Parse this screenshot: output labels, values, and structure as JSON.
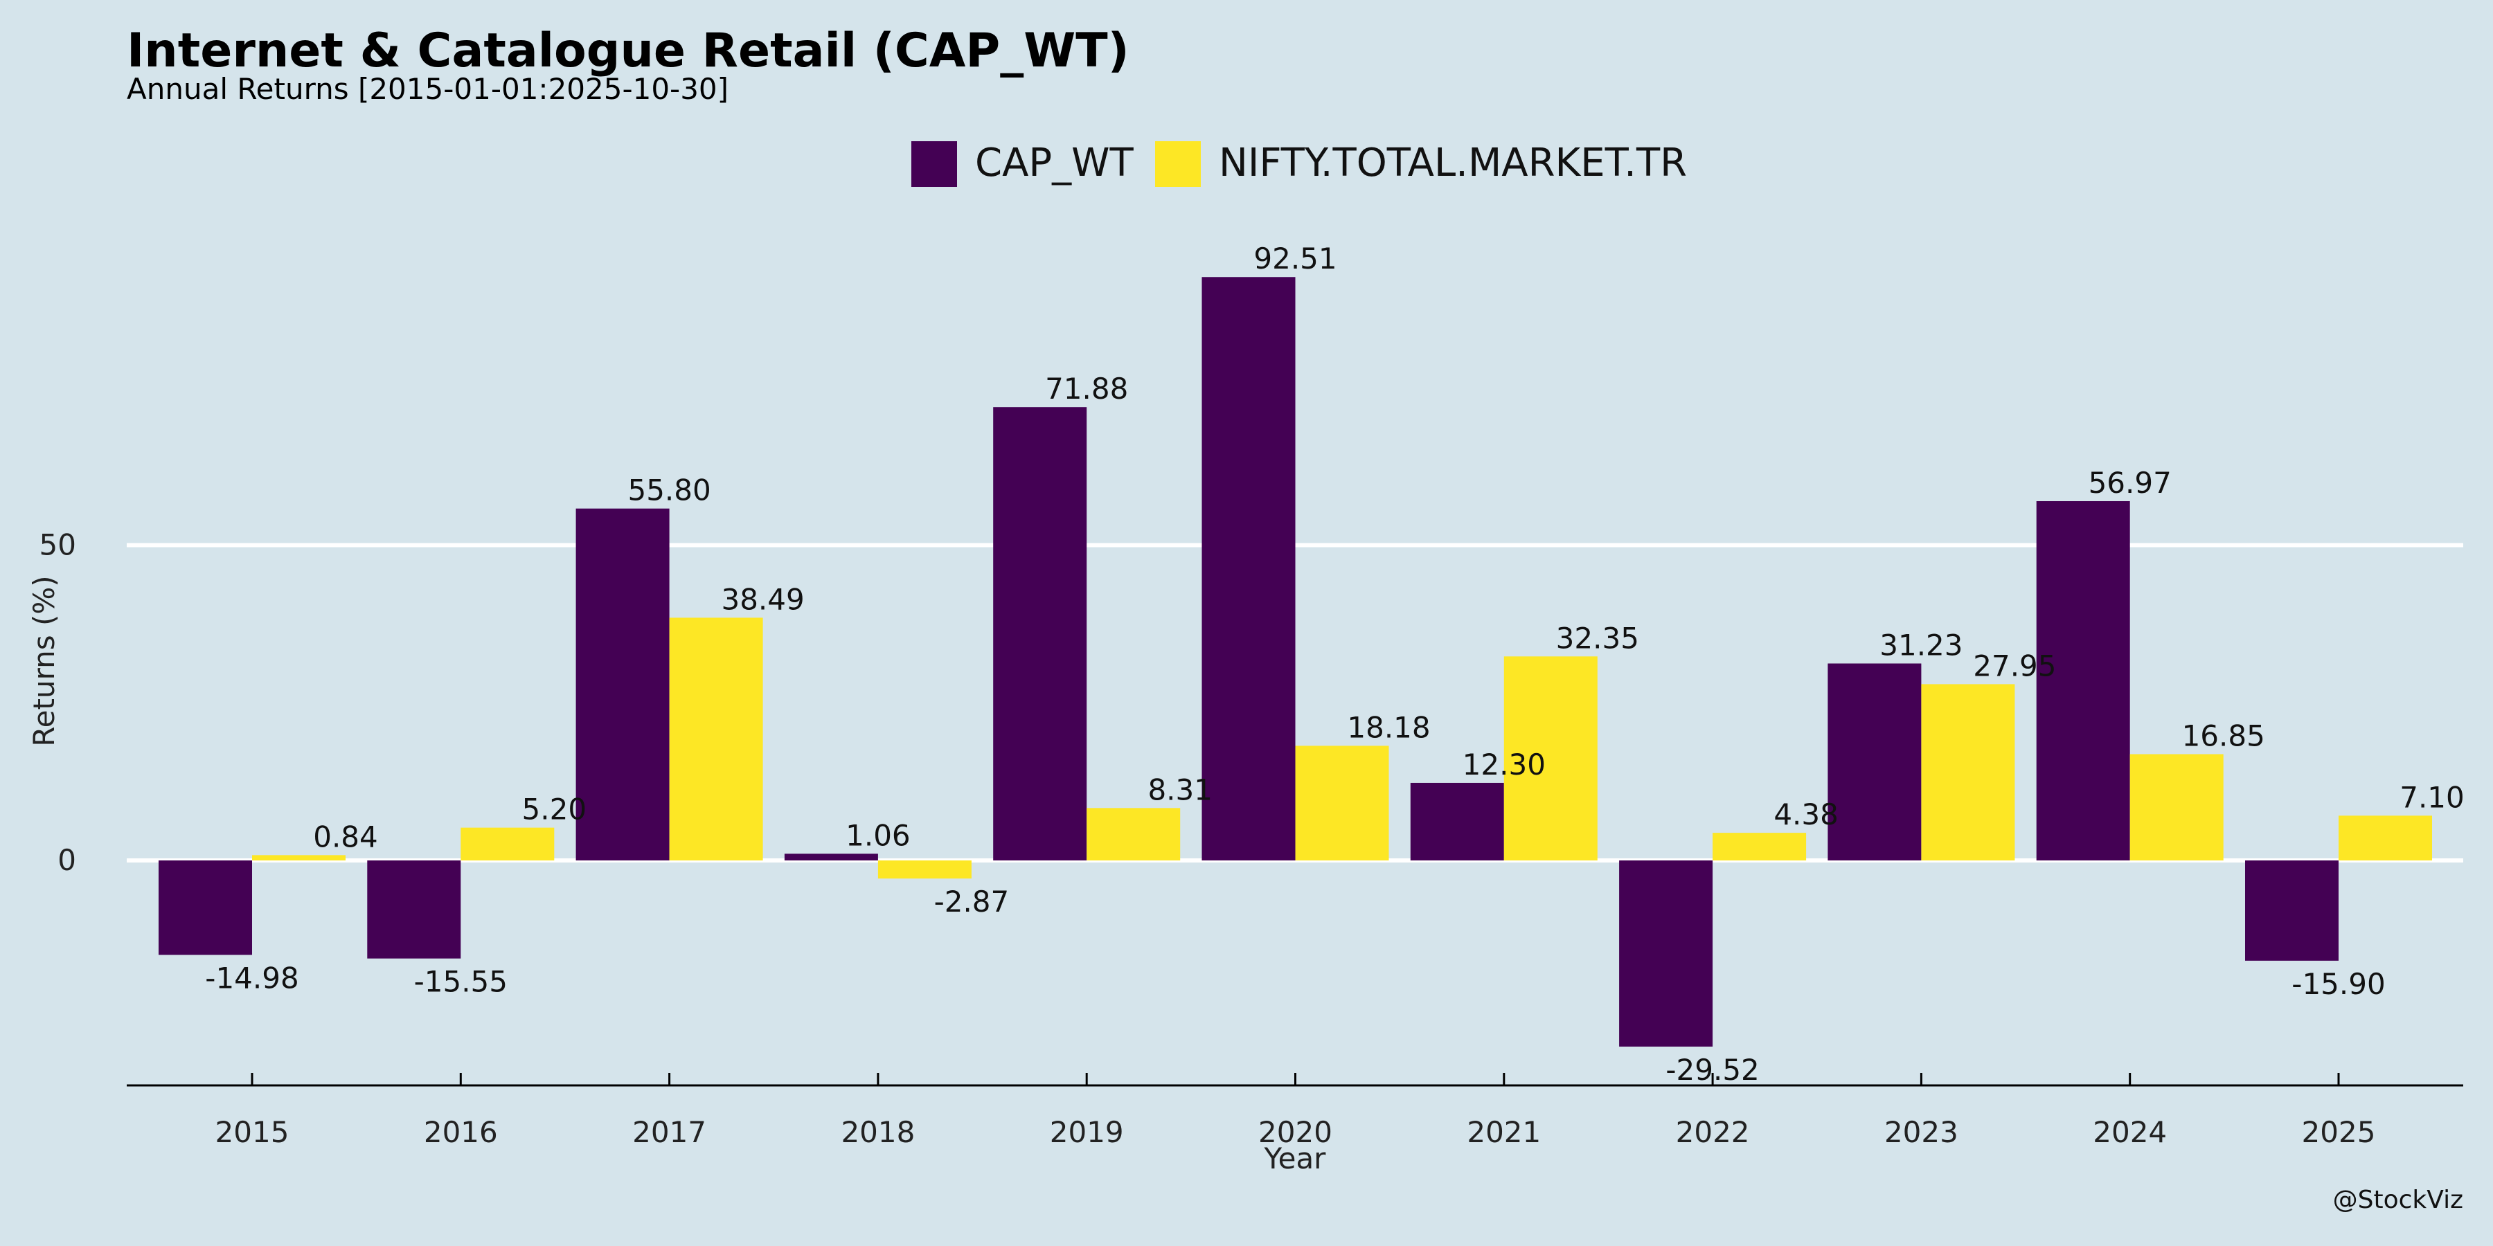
{
  "chart_data": {
    "type": "bar",
    "title": "Internet & Catalogue Retail (CAP_WT)",
    "subtitle": "Annual Returns [2015-01-01:2025-10-30]",
    "xlabel": "Year",
    "ylabel": "Returns (%)",
    "categories": [
      "2015",
      "2016",
      "2017",
      "2018",
      "2019",
      "2020",
      "2021",
      "2022",
      "2023",
      "2024",
      "2025"
    ],
    "series": [
      {
        "name": "CAP_WT",
        "color": "#440154",
        "values": [
          -14.98,
          -15.55,
          55.8,
          1.06,
          71.88,
          92.51,
          12.3,
          -29.52,
          31.23,
          56.97,
          -15.9
        ],
        "labels": [
          "-14.98",
          "-15.55",
          "55.80",
          "1.06",
          "71.88",
          "92.51",
          "12.30",
          "-29.52",
          "31.23",
          "56.97",
          "-15.90"
        ]
      },
      {
        "name": "NIFTY.TOTAL.MARKET.TR",
        "color": "#fde725",
        "values": [
          0.84,
          5.2,
          38.49,
          -2.87,
          8.31,
          18.18,
          32.35,
          4.38,
          27.95,
          16.85,
          7.1
        ],
        "labels": [
          "0.84",
          "5.20",
          "38.49",
          "-2.87",
          "8.31",
          "18.18",
          "32.35",
          "4.38",
          "27.95",
          "16.85",
          "7.10"
        ]
      }
    ],
    "yticks": [
      0,
      50
    ],
    "ylim": [
      -35.5,
      107
    ],
    "grid": "horizontal",
    "legend_position": "top-center",
    "watermark": "@StockViz",
    "background": "#d5e4eb"
  }
}
